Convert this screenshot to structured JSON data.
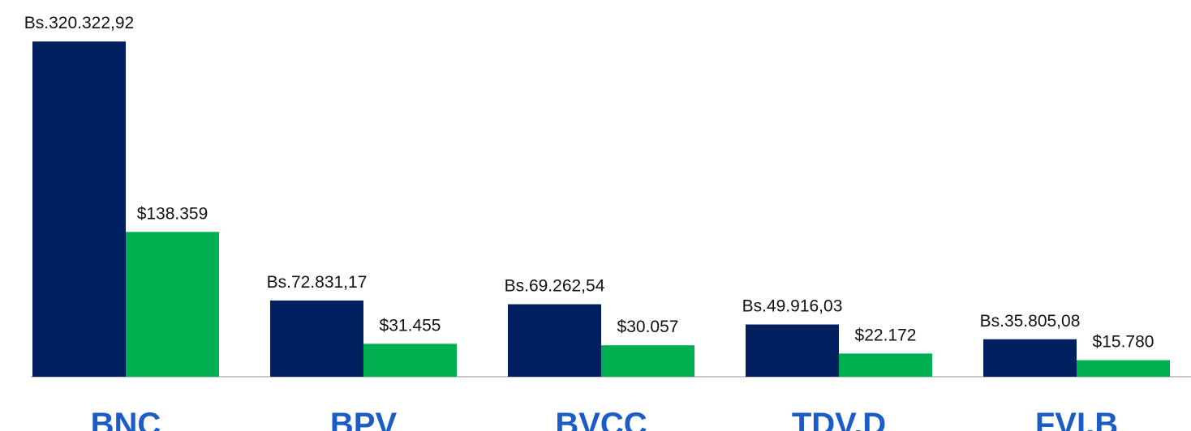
{
  "chart_data": {
    "type": "bar",
    "categories": [
      "BNC",
      "BPV",
      "BVCC",
      "TDV.D",
      "FVI.B"
    ],
    "series": [
      {
        "color": "#002060",
        "values": [
          320322.92,
          72831.17,
          69262.54,
          49916.03,
          35805.08
        ],
        "value_labels": [
          "Bs.320.322,92",
          "Bs.72.831,17",
          "Bs.69.262,54",
          "Bs.49.916,03",
          "Bs.35.805,08"
        ]
      },
      {
        "color": "#00b050",
        "values": [
          138359,
          31455,
          30057,
          22172,
          15780
        ],
        "value_labels": [
          "$138.359",
          "$31.455",
          "$30.057",
          "$22.172",
          "$15.780"
        ]
      }
    ],
    "ylim": [
      0,
      360000
    ]
  }
}
